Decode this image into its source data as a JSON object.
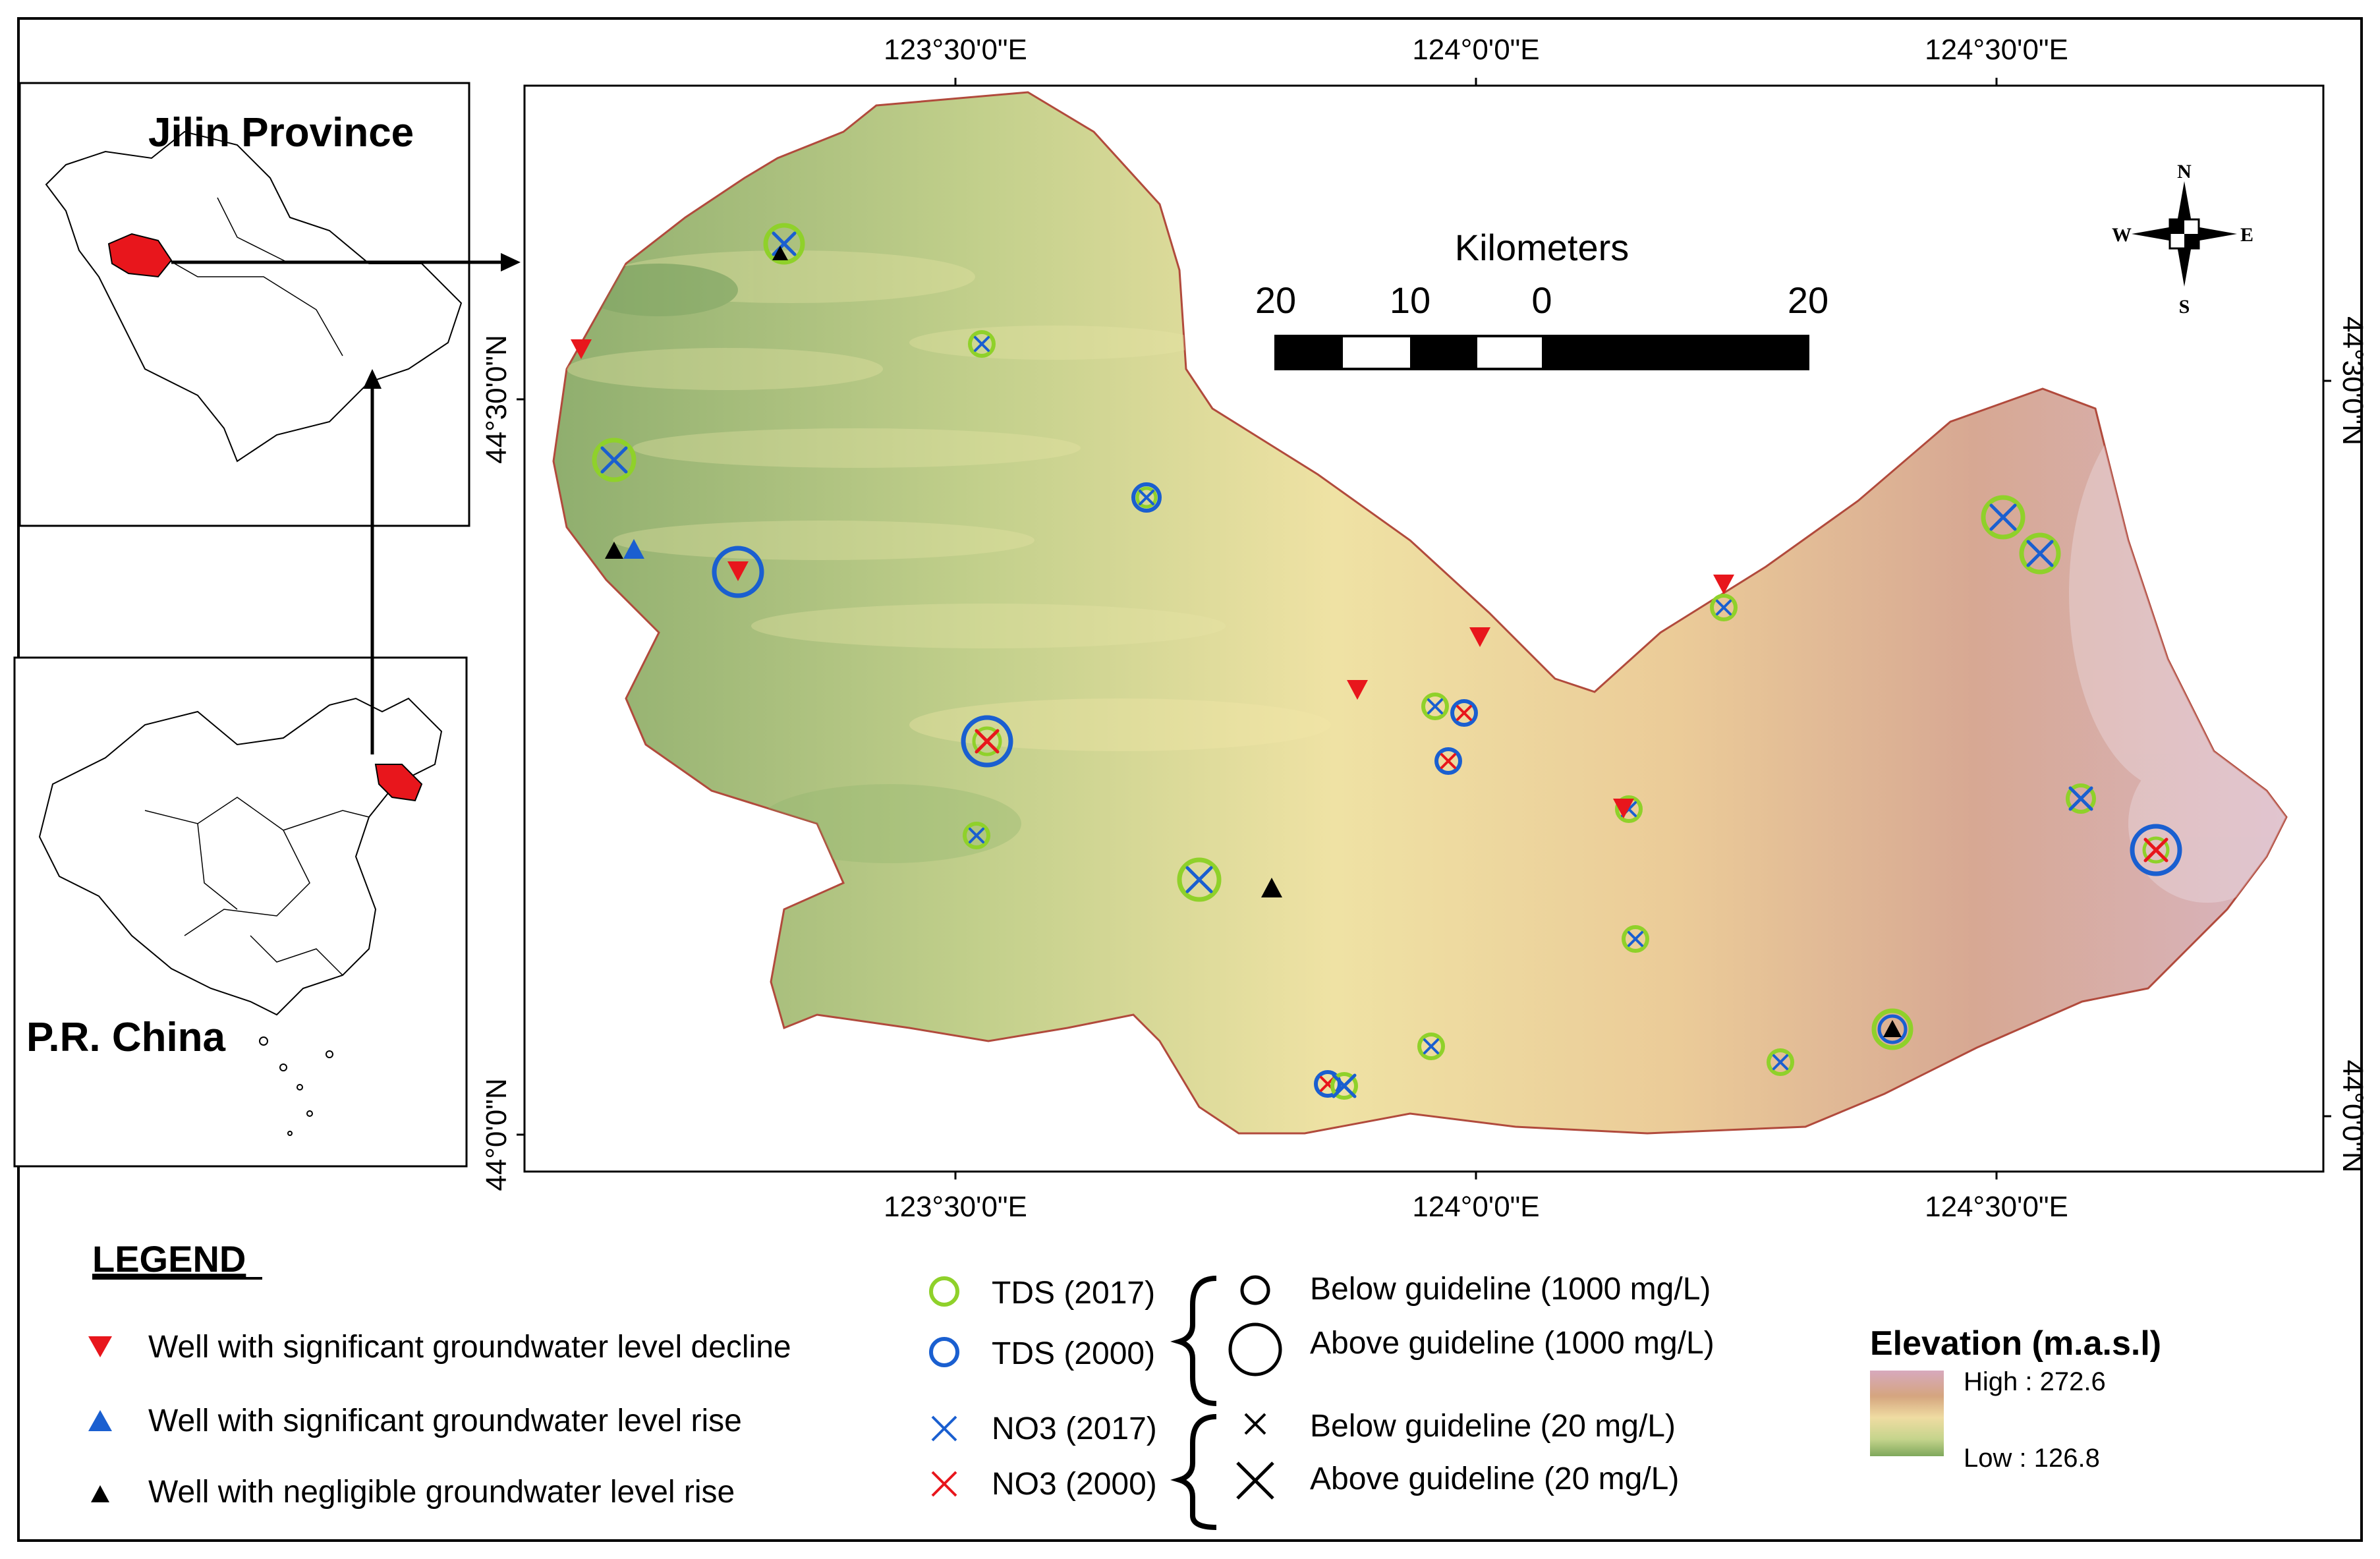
{
  "insets": {
    "jilin_title": "Jilin Province",
    "china_title": "P.R. China"
  },
  "coords": {
    "lon_labels": [
      "123°30'0\"E",
      "124°0'0\"E",
      "124°30'0\"E"
    ],
    "lat_labels": [
      "44°30'0\"N",
      "44°0'0\"N"
    ]
  },
  "scale_bar": {
    "title": "Kilometers",
    "ticks": [
      "20",
      "10",
      "0",
      "20"
    ]
  },
  "north_arrow": {
    "n": "N",
    "s": "S",
    "e": "E",
    "w": "W"
  },
  "legend": {
    "title": "LEGEND",
    "well_decline": "Well with significant groundwater level decline",
    "well_rise": "Well with significant groundwater level rise",
    "well_negligible": "Well with negligible groundwater level rise",
    "tds_2017": "TDS (2017)",
    "tds_2000": "TDS (2000)",
    "no3_2017": "NO3 (2017)",
    "no3_2000": "NO3 (2000)",
    "tds_below": "Below guideline (1000 mg/L)",
    "tds_above": "Above guideline (1000 mg/L)",
    "no3_below": "Below guideline (20 mg/L)",
    "no3_above": "Above guideline (20 mg/L)"
  },
  "elevation": {
    "title": "Elevation (m.a.s.l)",
    "high_label": "High : 272.6",
    "low_label": "Low : 126.8"
  },
  "colors": {
    "decline": "#e8161c",
    "rise": "#1a5fd0",
    "negligible": "#000000",
    "tds2017": "#8fd12a",
    "tds2000": "#1a5fd0",
    "no3_2017": "#1a5fd0",
    "no3_2000": "#e8161c",
    "highlight_region": "#e8161c"
  }
}
